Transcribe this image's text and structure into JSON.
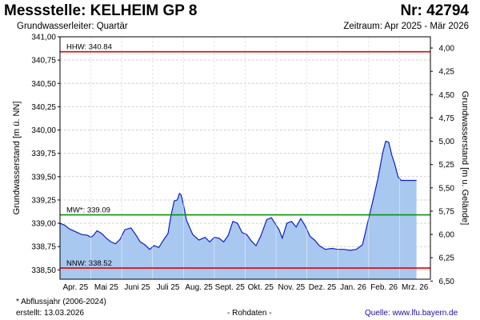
{
  "header": {
    "title": "Messstelle: KELHEIM GP 8",
    "number": "Nr: 42794",
    "subtitle": "Grundwasserleiter: Quartär",
    "period": "Zeitraum: Apr 2025 - Mär 2026"
  },
  "footer": {
    "note": "* Abflussjahr (2006-2024)",
    "created": "erstellt:  13.03.2026",
    "raw": "- Rohdaten -",
    "source_label": "Quelle:",
    "source_url": "www.lfu.bayern.de"
  },
  "colors": {
    "fill": "#a9c8f0",
    "line": "#0a1ecc",
    "hhw": "#e00000",
    "mw": "#009900",
    "nnw": "#e00000",
    "grid": "#d4d4d4",
    "plot_bg": "#ffffff"
  },
  "chart_data": {
    "type": "area",
    "ylabel": "Grundwasserstand [m ü. NN]",
    "y2label": "Grundwasserstand [m u. Gelände]",
    "ylim": [
      338.4,
      341.0
    ],
    "yticks": [
      "341,00",
      "340,75",
      "340,50",
      "340,25",
      "340,00",
      "339,75",
      "339,50",
      "339,25",
      "339,00",
      "338,75",
      "338,50"
    ],
    "ytick_values": [
      341.0,
      340.75,
      340.5,
      340.25,
      340.0,
      339.75,
      339.5,
      339.25,
      339.0,
      338.75,
      338.5
    ],
    "y2ticks": [
      "4,00",
      "4,25",
      "4,50",
      "4,75",
      "5,00",
      "5,25",
      "5,50",
      "5,75",
      "6,00",
      "6,25",
      "6,50"
    ],
    "y2tick_values": [
      340.88,
      340.63,
      340.38,
      340.13,
      339.88,
      339.63,
      339.38,
      339.13,
      338.88,
      338.63,
      338.38
    ],
    "xticks": [
      "Apr. 25",
      "Mai 25",
      "Juni 25",
      "Juli 25",
      "Aug. 25",
      "Sept. 25",
      "Okt. 25",
      "Nov. 25",
      "Dez. 25",
      "Jan. 26",
      "Feb. 26",
      "Mrz. 26"
    ],
    "xlim": [
      0,
      12
    ],
    "reference_lines": [
      {
        "label": "HHW: 340.84",
        "value": 340.84,
        "kind": "hhw"
      },
      {
        "label": "MW*: 339.09",
        "value": 339.09,
        "kind": "mw"
      },
      {
        "label": "NNW: 338.52",
        "value": 338.52,
        "kind": "nnw"
      }
    ],
    "series": [
      {
        "x": [
          0.0,
          0.15,
          0.3,
          0.5,
          0.7,
          0.9,
          1.0,
          1.08,
          1.2,
          1.35,
          1.5,
          1.65,
          1.8,
          1.95,
          2.1,
          2.3,
          2.45,
          2.6,
          2.75,
          2.9,
          3.05,
          3.2,
          3.35,
          3.5,
          3.6,
          3.7,
          3.8,
          3.87,
          3.93,
          4.0,
          4.1,
          4.3,
          4.5,
          4.7,
          4.85,
          5.0,
          5.15,
          5.3,
          5.45,
          5.6,
          5.75,
          5.9,
          6.05,
          6.2,
          6.35,
          6.5,
          6.7,
          6.85,
          7.0,
          7.1,
          7.2,
          7.35,
          7.5,
          7.65,
          7.8,
          7.95,
          8.1,
          8.25,
          8.4,
          8.6,
          8.8,
          9.0,
          9.2,
          9.4,
          9.6,
          9.8,
          10.0,
          10.15,
          10.3,
          10.45,
          10.55,
          10.65,
          10.75,
          10.85,
          10.95,
          11.05,
          11.15,
          11.25,
          11.35,
          11.45,
          11.55
        ],
        "y": [
          339.0,
          338.98,
          338.94,
          338.91,
          338.88,
          338.87,
          338.85,
          338.87,
          338.92,
          338.89,
          338.84,
          338.8,
          338.78,
          338.83,
          338.93,
          338.95,
          338.88,
          338.8,
          338.77,
          338.72,
          338.76,
          338.74,
          338.82,
          338.89,
          339.09,
          339.24,
          339.25,
          339.32,
          339.3,
          339.2,
          339.03,
          338.88,
          338.82,
          338.85,
          338.8,
          338.85,
          338.84,
          338.8,
          338.87,
          339.02,
          339.0,
          338.9,
          338.88,
          338.81,
          338.76,
          338.86,
          339.04,
          339.06,
          338.98,
          338.93,
          338.84,
          339.0,
          339.02,
          338.96,
          339.05,
          338.97,
          338.86,
          338.82,
          338.76,
          338.72,
          338.73,
          338.72,
          338.72,
          338.71,
          338.72,
          338.77,
          339.05,
          339.26,
          339.48,
          339.75,
          339.88,
          339.87,
          339.73,
          339.63,
          339.5,
          339.46,
          339.46,
          339.46,
          339.46,
          339.46,
          339.46
        ]
      }
    ]
  }
}
